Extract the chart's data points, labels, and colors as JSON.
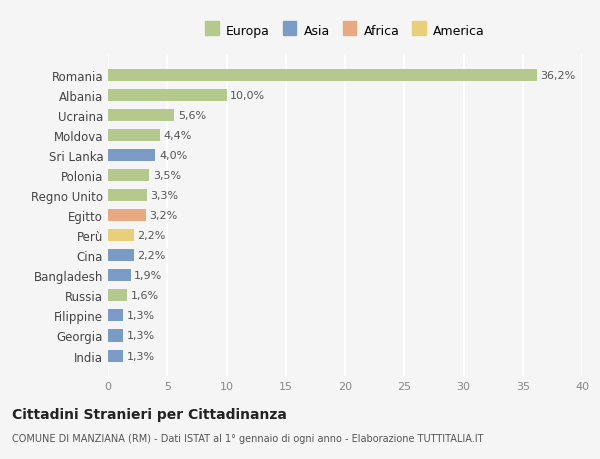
{
  "countries": [
    "Romania",
    "Albania",
    "Ucraina",
    "Moldova",
    "Sri Lanka",
    "Polonia",
    "Regno Unito",
    "Egitto",
    "Perù",
    "Cina",
    "Bangladesh",
    "Russia",
    "Filippine",
    "Georgia",
    "India"
  ],
  "values": [
    36.2,
    10.0,
    5.6,
    4.4,
    4.0,
    3.5,
    3.3,
    3.2,
    2.2,
    2.2,
    1.9,
    1.6,
    1.3,
    1.3,
    1.3
  ],
  "labels": [
    "36,2%",
    "10,0%",
    "5,6%",
    "4,4%",
    "4,0%",
    "3,5%",
    "3,3%",
    "3,2%",
    "2,2%",
    "2,2%",
    "1,9%",
    "1,6%",
    "1,3%",
    "1,3%",
    "1,3%"
  ],
  "continents": [
    "Europa",
    "Europa",
    "Europa",
    "Europa",
    "Asia",
    "Europa",
    "Europa",
    "Africa",
    "America",
    "Asia",
    "Asia",
    "Europa",
    "Asia",
    "Asia",
    "Asia"
  ],
  "colors": {
    "Europa": "#b5c98e",
    "Asia": "#7a9cc4",
    "Africa": "#e8a882",
    "America": "#e8d07a"
  },
  "legend_order": [
    "Europa",
    "Asia",
    "Africa",
    "America"
  ],
  "title": "Cittadini Stranieri per Cittadinanza",
  "subtitle": "COMUNE DI MANZIANA (RM) - Dati ISTAT al 1° gennaio di ogni anno - Elaborazione TUTTITALIA.IT",
  "xlim": [
    0,
    40
  ],
  "xticks": [
    0,
    5,
    10,
    15,
    20,
    25,
    30,
    35,
    40
  ],
  "bg_color": "#f5f5f5",
  "grid_color": "#ffffff",
  "bar_height": 0.6
}
